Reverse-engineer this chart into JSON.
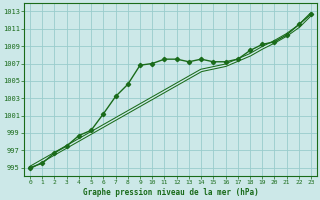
{
  "x": [
    0,
    1,
    2,
    3,
    4,
    5,
    6,
    7,
    8,
    9,
    10,
    11,
    12,
    13,
    14,
    15,
    16,
    17,
    18,
    19,
    20,
    21,
    22,
    23
  ],
  "y_curve": [
    995.0,
    995.5,
    996.7,
    997.5,
    998.7,
    999.3,
    1001.2,
    1003.2,
    1004.6,
    1006.8,
    1007.0,
    1007.5,
    1007.5,
    1007.2,
    1007.5,
    1007.2,
    1007.2,
    1007.5,
    1008.5,
    1009.2,
    1009.5,
    1010.3,
    1011.5,
    1012.7
  ],
  "y_trend": [
    995.0,
    995.8,
    996.6,
    997.4,
    998.2,
    999.0,
    999.8,
    1000.6,
    1001.4,
    1002.2,
    1003.0,
    1003.8,
    1004.6,
    1005.4,
    1006.2,
    1006.5,
    1006.8,
    1007.4,
    1008.0,
    1008.8,
    1009.5,
    1010.3,
    1011.3,
    1012.7
  ],
  "line_color": "#1a6b1a",
  "bg_color": "#cce8e8",
  "grid_color": "#99cccc",
  "xlabel": "Graphe pression niveau de la mer (hPa)",
  "ylim": [
    994,
    1014
  ],
  "yticks": [
    995,
    997,
    999,
    1001,
    1003,
    1005,
    1007,
    1009,
    1011,
    1013
  ],
  "xlim": [
    -0.5,
    23.5
  ],
  "xticks": [
    0,
    1,
    2,
    3,
    4,
    5,
    6,
    7,
    8,
    9,
    10,
    11,
    12,
    13,
    14,
    15,
    16,
    17,
    18,
    19,
    20,
    21,
    22,
    23
  ]
}
